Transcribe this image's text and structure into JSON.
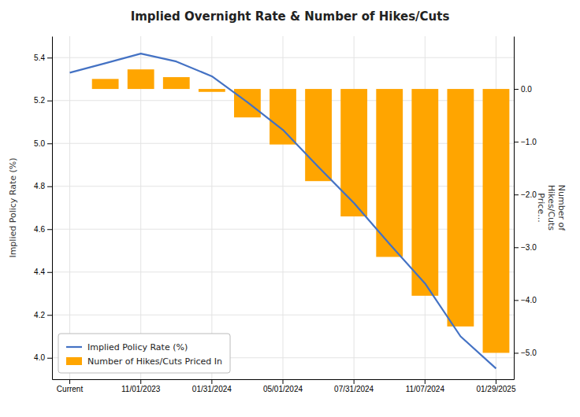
{
  "chart_data": {
    "type": "bar",
    "title": "Implied Overnight Rate & Number of Hikes/Cuts",
    "categories": [
      "Current",
      null,
      "11/01/2023",
      null,
      "01/31/2024",
      null,
      "05/01/2024",
      null,
      "07/31/2024",
      null,
      "11/07/2024",
      null,
      "01/29/2025"
    ],
    "series": [
      {
        "name": "Implied Policy Rate (%)",
        "type": "line",
        "color": "#4472C4",
        "axis": "y",
        "values": [
          5.33,
          5.374,
          5.419,
          5.382,
          5.313,
          5.192,
          5.063,
          4.89,
          4.722,
          4.531,
          4.347,
          4.1,
          3.95
        ]
      },
      {
        "name": "Number of Hikes/Cuts Priced In",
        "type": "bar",
        "color": "#FFA500",
        "axis": "y2",
        "values": [
          0.0,
          0.19,
          0.371,
          0.224,
          -0.055,
          -0.539,
          -1.052,
          -1.746,
          -2.415,
          -3.182,
          -3.918,
          -4.5,
          -5.0
        ]
      }
    ],
    "ylabel": "Implied Policy Rate (%)",
    "y2label": "Number of\nHikes/Cuts\nPrice...",
    "ylim": [
      3.9,
      5.5
    ],
    "yticks": [
      {
        "value": 4.0,
        "label": "4.0"
      },
      4.2,
      4.4,
      4.6,
      4.8,
      {
        "value": 5.0,
        "label": "5.0"
      },
      5.2,
      5.4
    ],
    "y2lim": [
      -5.5,
      1.0
    ],
    "y2ticks": [
      {
        "value": 0.0,
        "label": "0.0"
      },
      {
        "value": -1.0,
        "label": "−1.0"
      },
      {
        "value": -2.0,
        "label": "−2.0"
      },
      {
        "value": -3.0,
        "label": "−3.0"
      },
      {
        "value": -4.0,
        "label": "−4.0"
      },
      {
        "value": -5.0,
        "label": "−5.0"
      }
    ],
    "grid": true,
    "legend": "lower left"
  }
}
